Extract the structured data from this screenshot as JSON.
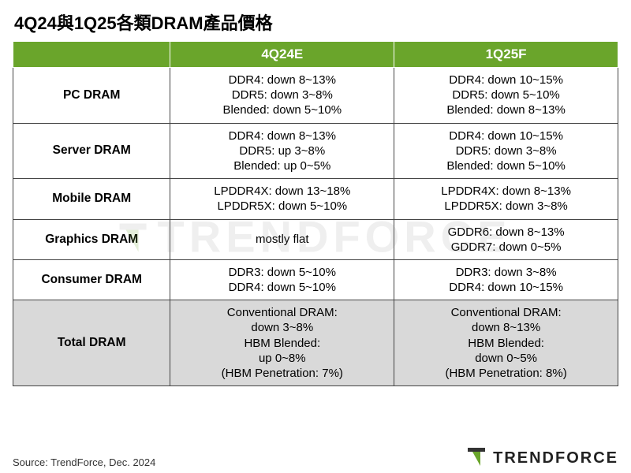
{
  "title": "4Q24與1Q25各類DRAM產品價格",
  "table": {
    "type": "table",
    "header_bg": "#6aa52b",
    "header_fg": "#ffffff",
    "border_color": "#444444",
    "total_row_bg": "#d9d9d9",
    "background_color": "#ffffff",
    "font_family": "Arial",
    "title_fontsize": 22,
    "header_fontsize": 17,
    "cell_fontsize": 15,
    "column_widths_pct": [
      26,
      37,
      37
    ],
    "columns": [
      "",
      "4Q24E",
      "1Q25F"
    ],
    "rows": [
      {
        "label": "PC DRAM",
        "q4": [
          "DDR4: down  8~13%",
          "DDR5: down  3~8%",
          "Blended: down  5~10%"
        ],
        "q1": [
          "DDR4: down  10~15%",
          "DDR5: down  5~10%",
          "Blended: down  8~13%"
        ]
      },
      {
        "label": "Server DRAM",
        "q4": [
          "DDR4: down  8~13%",
          "DDR5: up  3~8%",
          "Blended: up  0~5%"
        ],
        "q1": [
          "DDR4: down  10~15%",
          "DDR5: down  3~8%",
          "Blended: down  5~10%"
        ]
      },
      {
        "label": "Mobile DRAM",
        "q4": [
          "LPDDR4X: down  13~18%",
          "LPDDR5X: down  5~10%"
        ],
        "q1": [
          "LPDDR4X: down  8~13%",
          "LPDDR5X: down  3~8%"
        ]
      },
      {
        "label": "Graphics DRAM",
        "q4": [
          "mostly flat"
        ],
        "q1": [
          "GDDR6: down  8~13%",
          "GDDR7: down  0~5%"
        ]
      },
      {
        "label": "Consumer DRAM",
        "q4": [
          "DDR3: down  5~10%",
          "DDR4: down  5~10%"
        ],
        "q1": [
          "DDR3: down  3~8%",
          "DDR4: down  10~15%"
        ]
      },
      {
        "label": "Total DRAM",
        "total": true,
        "q4": [
          "Conventional DRAM:",
          "down 3~8%",
          "HBM Blended:",
          "up 0~8%",
          "(HBM Penetration: 7%)"
        ],
        "q1": [
          "Conventional DRAM:",
          "down 8~13%",
          "HBM Blended:",
          "down 0~5%",
          "(HBM Penetration: 8%)"
        ]
      }
    ]
  },
  "source": "Source: TrendForce, Dec. 2024",
  "brand": "TRENDFORCE",
  "watermark": "TRENDFORCE"
}
